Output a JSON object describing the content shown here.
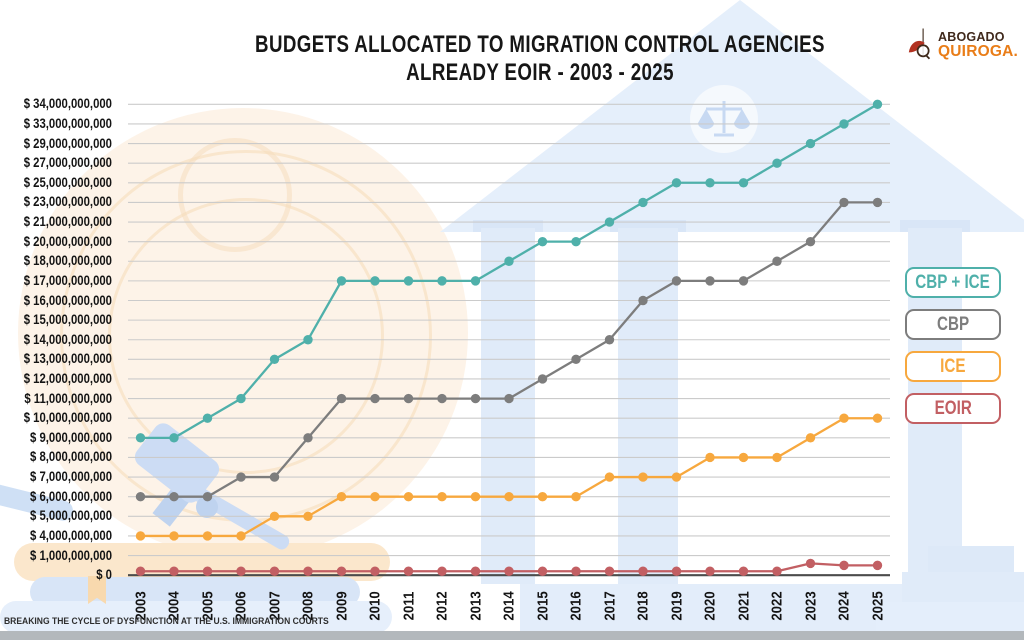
{
  "title": {
    "line1": "BUDGETS ALLOCATED TO MIGRATION CONTROL AGENCIES",
    "line2": "ALREADY EOIR - 2003 - 2025"
  },
  "logo": {
    "line1": "ABOGADO",
    "line2": "QUIROGA."
  },
  "footer": {
    "tagline": "BREAKING THE CYCLE OF DYSFUNCTION AT THE U.S. IMMIGRATION COURTS"
  },
  "colors": {
    "cbp_ice": "#4fb0aa",
    "cbp": "#7d7d7d",
    "ice": "#f7a83e",
    "eoir": "#c25f63",
    "gridline": "#cbcbcb",
    "axis_line": "#4c4c4c",
    "logo_brown": "#40291c",
    "logo_orange": "#e97d18",
    "decor_blue": "#e0ebf9",
    "decor_peach": "#fdf3e8"
  },
  "legend": {
    "items": [
      {
        "label": "CBP + ICE",
        "color": "#4fb0aa"
      },
      {
        "label": "CBP",
        "color": "#7d7d7d"
      },
      {
        "label": "ICE",
        "color": "#f7a83e"
      },
      {
        "label": "EOIR",
        "color": "#c25f63"
      }
    ]
  },
  "chart_data": {
    "type": "line",
    "title": "BUDGETS ALLOCATED TO MIGRATION CONTROL AGENCIES ALREADY EOIR - 2003 - 2025",
    "xlabel": "",
    "ylabel": "",
    "grid": true,
    "legend_position": "right",
    "x": [
      2003,
      2004,
      2005,
      2006,
      2007,
      2008,
      2009,
      2010,
      2011,
      2012,
      2013,
      2014,
      2015,
      2016,
      2017,
      2018,
      2019,
      2020,
      2021,
      2022,
      2023,
      2024,
      2025
    ],
    "y_axis": {
      "scale": "ordinal-evenly-spaced-ticks",
      "tick_labels": [
        "$ 34,000,000,000",
        "$ 33,000,000,000",
        "$ 29,000,000,000",
        "$ 27,000,000,000",
        "$ 25,000,000,000",
        "$ 23,000,000,000",
        "$ 21,000,000,000",
        "$ 20,000,000,000",
        "$ 18,000,000,000",
        "$ 17,000,000,000",
        "$ 16,000,000,000",
        "$ 15,000,000,000",
        "$ 14,000,000,000",
        "$ 13,000,000,000",
        "$ 12,000,000,000",
        "$ 11,000,000,000",
        "$ 10,000,000,000",
        "$ 9,000,000,000",
        "$ 8,000,000,000",
        "$ 7,000,000,000",
        "$ 6,000,000,000",
        "$ 5,000,000,000",
        "$ 4,000,000,000",
        "$ 1,000,000,000",
        "$ 0"
      ],
      "tick_values_billions": [
        34,
        33,
        29,
        27,
        25,
        23,
        21,
        20,
        18,
        17,
        16,
        15,
        14,
        13,
        12,
        11,
        10,
        9,
        8,
        7,
        6,
        5,
        4,
        1,
        0
      ]
    },
    "series": [
      {
        "name": "CBP + ICE",
        "color": "#4fb0aa",
        "values_billions": [
          9,
          9,
          10,
          11,
          13,
          14,
          17,
          17,
          17,
          17,
          17,
          18,
          20,
          20,
          21,
          23,
          25,
          25,
          25,
          27,
          29,
          33,
          34
        ]
      },
      {
        "name": "CBP",
        "color": "#7d7d7d",
        "values_billions": [
          6,
          6,
          6,
          7,
          7,
          9,
          11,
          11,
          11,
          11,
          11,
          11,
          12,
          13,
          14,
          16,
          17,
          17,
          17,
          18,
          20,
          23,
          23
        ]
      },
      {
        "name": "ICE",
        "color": "#f7a83e",
        "values_billions": [
          4,
          4,
          4,
          4,
          5,
          5,
          6,
          6,
          6,
          6,
          6,
          6,
          6,
          6,
          7,
          7,
          7,
          8,
          8,
          8,
          9,
          10,
          10
        ]
      },
      {
        "name": "EOIR",
        "color": "#c25f63",
        "values_billions": [
          0.2,
          0.2,
          0.2,
          0.2,
          0.2,
          0.2,
          0.2,
          0.2,
          0.2,
          0.2,
          0.2,
          0.2,
          0.2,
          0.2,
          0.2,
          0.2,
          0.2,
          0.2,
          0.2,
          0.2,
          0.6,
          0.5,
          0.5
        ]
      }
    ]
  }
}
